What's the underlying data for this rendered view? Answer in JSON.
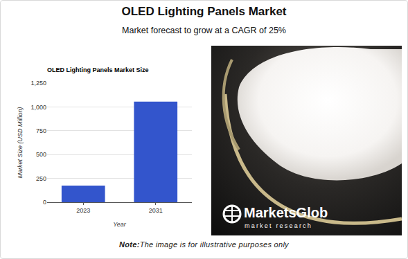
{
  "title": "OLED Lighting Panels Market",
  "subtitle": "Market forecast to grow at a CAGR of 25%",
  "chart_data": {
    "type": "bar",
    "title": "OLED Lighting Panels Market Size",
    "x_label": "Year",
    "y_label": "Market Size (USD Million)",
    "categories": [
      "2023",
      "2031"
    ],
    "values": [
      175,
      1055
    ],
    "color": "#3355cc",
    "ylim": [
      0,
      1250
    ],
    "yticks": [
      0,
      250,
      500,
      750,
      {
        "value": 1000,
        "label": "1,000"
      },
      {
        "value": 1250,
        "label": "1,250"
      }
    ],
    "grid": true
  },
  "image": {
    "logo": "MarketsGlob",
    "tagline": "market research"
  },
  "note": {
    "label": "Note:",
    "text": "The image is for illustrative purposes only"
  }
}
